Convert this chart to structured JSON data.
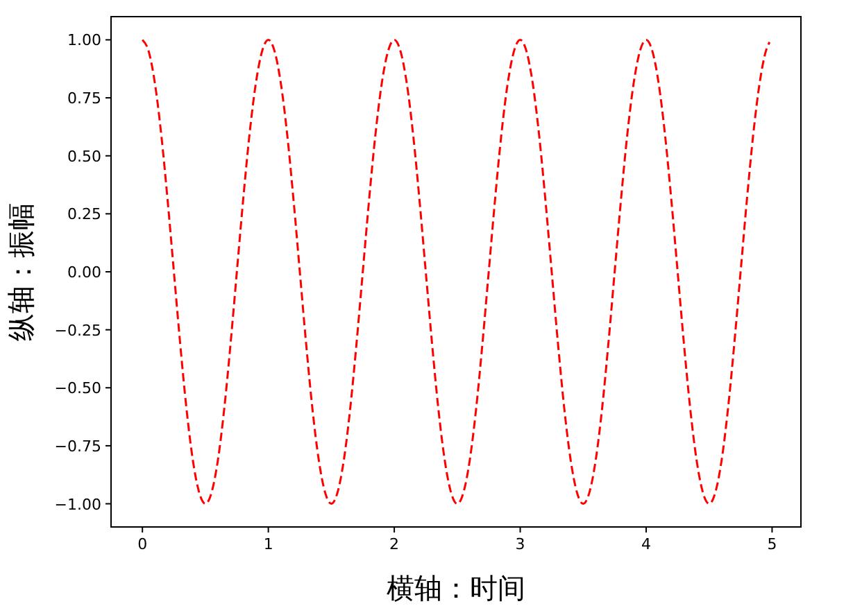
{
  "chart_data": {
    "type": "line",
    "xlabel": "横轴：时间",
    "ylabel": "纵轴：振幅",
    "xlim": [
      -0.249,
      5.229
    ],
    "ylim": [
      -1.1,
      1.1
    ],
    "xticks": [
      0,
      1,
      2,
      3,
      4,
      5
    ],
    "yticks": [
      {
        "value": -1,
        "label": "−1.00"
      },
      {
        "value": -0.75,
        "label": "−0.75"
      },
      {
        "value": -0.5,
        "label": "−0.50"
      },
      {
        "value": -0.25,
        "label": "−0.25"
      },
      {
        "value": 0,
        "label": "0.00"
      },
      {
        "value": 0.25,
        "label": "0.25"
      },
      {
        "value": 0.5,
        "label": "0.50"
      },
      {
        "value": 0.75,
        "label": "0.75"
      },
      {
        "value": 1,
        "label": "1.00"
      }
    ],
    "grid": false,
    "marker": "none",
    "line_style": "dashed",
    "series": [
      {
        "color": "#ff0000",
        "x": [
          0,
          0.05,
          0.1,
          0.15,
          0.2,
          0.25,
          0.3,
          0.35,
          0.4,
          0.45,
          0.5,
          0.55,
          0.6,
          0.65,
          0.7,
          0.75,
          0.8,
          0.85,
          0.9,
          0.95,
          1,
          1.05,
          1.1,
          1.15,
          1.2,
          1.25,
          1.3,
          1.35,
          1.4,
          1.45,
          1.5,
          1.55,
          1.6,
          1.65,
          1.7,
          1.75,
          1.8,
          1.85,
          1.9,
          1.95,
          2,
          2.05,
          2.1,
          2.15,
          2.2,
          2.25,
          2.3,
          2.35,
          2.4,
          2.45,
          2.5,
          2.55,
          2.6,
          2.65,
          2.7,
          2.75,
          2.8,
          2.85,
          2.9,
          2.95,
          3,
          3.05,
          3.1,
          3.15,
          3.2,
          3.25,
          3.3,
          3.35,
          3.4,
          3.45,
          3.5,
          3.55,
          3.6,
          3.65,
          3.7,
          3.75,
          3.8,
          3.85,
          3.9,
          3.95,
          4,
          4.05,
          4.1,
          4.15,
          4.2,
          4.25,
          4.3,
          4.35,
          4.4,
          4.45,
          4.5,
          4.55,
          4.6,
          4.65,
          4.7,
          4.75,
          4.8,
          4.85,
          4.9,
          4.95,
          4.98
        ],
        "values": [
          1,
          0.95,
          0.81,
          0.59,
          0.31,
          0,
          -0.31,
          -0.59,
          -0.81,
          -0.95,
          -1,
          -0.95,
          -0.81,
          -0.59,
          -0.31,
          0,
          0.31,
          0.59,
          0.81,
          0.95,
          1,
          0.95,
          0.81,
          0.59,
          0.31,
          0,
          -0.31,
          -0.59,
          -0.81,
          -0.95,
          -1,
          -0.95,
          -0.81,
          -0.59,
          -0.31,
          0,
          0.31,
          0.59,
          0.81,
          0.95,
          1,
          0.95,
          0.81,
          0.59,
          0.31,
          0,
          -0.31,
          -0.59,
          -0.81,
          -0.95,
          -1,
          -0.95,
          -0.81,
          -0.59,
          -0.31,
          0,
          0.31,
          0.59,
          0.81,
          0.95,
          1,
          0.95,
          0.81,
          0.59,
          0.31,
          0,
          -0.31,
          -0.59,
          -0.81,
          -0.95,
          -1,
          -0.95,
          -0.81,
          -0.59,
          -0.31,
          0,
          0.31,
          0.59,
          0.81,
          0.95,
          1,
          0.95,
          0.81,
          0.59,
          0.31,
          0,
          -0.31,
          -0.59,
          -0.81,
          -0.95,
          -1,
          -0.95,
          -0.81,
          -0.59,
          -0.31,
          0,
          0.31,
          0.59,
          0.81,
          0.95,
          0.99
        ]
      }
    ]
  }
}
